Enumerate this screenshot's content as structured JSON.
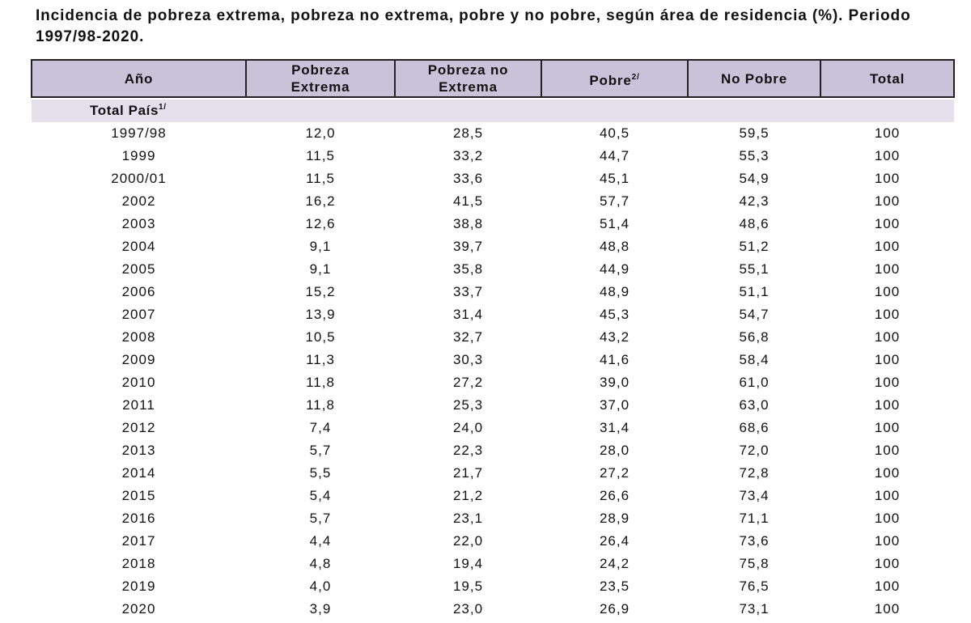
{
  "title": "Incidencia de pobreza extrema, pobreza no extrema, pobre y no pobre, según área de residencia (%). Periodo 1997/98-2020.",
  "table": {
    "columns": [
      {
        "label": "Año"
      },
      {
        "label": "Pobreza Extrema"
      },
      {
        "label": "Pobreza no Extrema"
      },
      {
        "label": "Pobre",
        "note": "2/"
      },
      {
        "label": "No Pobre"
      },
      {
        "label": "Total"
      }
    ],
    "section": {
      "label": "Total País",
      "note": "1/"
    },
    "rows": [
      [
        "1997/98",
        "12,0",
        "28,5",
        "40,5",
        "59,5",
        "100"
      ],
      [
        "1999",
        "11,5",
        "33,2",
        "44,7",
        "55,3",
        "100"
      ],
      [
        "2000/01",
        "11,5",
        "33,6",
        "45,1",
        "54,9",
        "100"
      ],
      [
        "2002",
        "16,2",
        "41,5",
        "57,7",
        "42,3",
        "100"
      ],
      [
        "2003",
        "12,6",
        "38,8",
        "51,4",
        "48,6",
        "100"
      ],
      [
        "2004",
        "9,1",
        "39,7",
        "48,8",
        "51,2",
        "100"
      ],
      [
        "2005",
        "9,1",
        "35,8",
        "44,9",
        "55,1",
        "100"
      ],
      [
        "2006",
        "15,2",
        "33,7",
        "48,9",
        "51,1",
        "100"
      ],
      [
        "2007",
        "13,9",
        "31,4",
        "45,3",
        "54,7",
        "100"
      ],
      [
        "2008",
        "10,5",
        "32,7",
        "43,2",
        "56,8",
        "100"
      ],
      [
        "2009",
        "11,3",
        "30,3",
        "41,6",
        "58,4",
        "100"
      ],
      [
        "2010",
        "11,8",
        "27,2",
        "39,0",
        "61,0",
        "100"
      ],
      [
        "2011",
        "11,8",
        "25,3",
        "37,0",
        "63,0",
        "100"
      ],
      [
        "2012",
        "7,4",
        "24,0",
        "31,4",
        "68,6",
        "100"
      ],
      [
        "2013",
        "5,7",
        "22,3",
        "28,0",
        "72,0",
        "100"
      ],
      [
        "2014",
        "5,5",
        "21,7",
        "27,2",
        "72,8",
        "100"
      ],
      [
        "2015",
        "5,4",
        "21,2",
        "26,6",
        "73,4",
        "100"
      ],
      [
        "2016",
        "5,7",
        "23,1",
        "28,9",
        "71,1",
        "100"
      ],
      [
        "2017",
        "4,4",
        "22,0",
        "26,4",
        "73,6",
        "100"
      ],
      [
        "2018",
        "4,8",
        "19,4",
        "24,2",
        "75,8",
        "100"
      ],
      [
        "2019",
        "4,0",
        "19,5",
        "23,5",
        "76,5",
        "100"
      ],
      [
        "2020",
        "3,9",
        "23,0",
        "26,9",
        "73,1",
        "100"
      ]
    ]
  }
}
